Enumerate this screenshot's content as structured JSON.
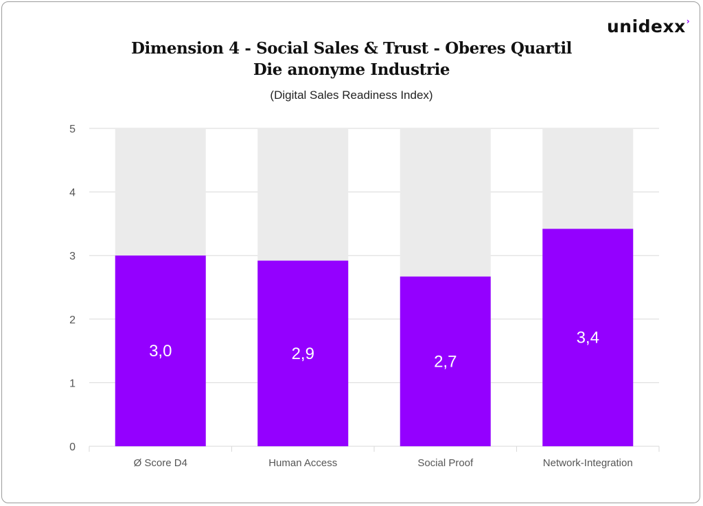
{
  "brand": {
    "logo_text": "unidexx",
    "logo_mark": "›"
  },
  "chart_data": {
    "type": "bar",
    "title": "Dimension 4 - Social Sales & Trust - Oberes Quartil",
    "title_line2": "Die anonyme Industrie",
    "subtitle": "(Digital Sales Readiness Index)",
    "xlabel": "",
    "ylabel": "",
    "categories": [
      "Ø Score D4",
      "Human Access",
      "Social Proof",
      "Network-Integration"
    ],
    "values": [
      3.0,
      2.92,
      2.67,
      3.42
    ],
    "data_labels": [
      "3,0",
      "2,9",
      "2,7",
      "3,4"
    ],
    "ylim": [
      0,
      5
    ],
    "yticks": [
      "0",
      "1",
      "2",
      "3",
      "4",
      "5"
    ],
    "background_bar_value": 5,
    "grid": true,
    "legend": "none",
    "colors": {
      "bar": "#9400ff",
      "background_bar": "#ebebeb",
      "grid": "#d9d9d9"
    }
  }
}
